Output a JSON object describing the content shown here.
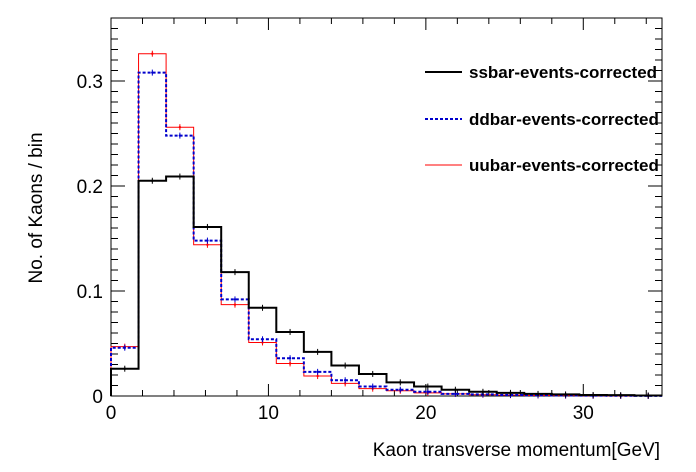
{
  "chart_data": {
    "type": "histogram",
    "xlabel": "Kaon transverse momentum[GeV]",
    "ylabel": "No. of Kaons / bin",
    "xlim": [
      0,
      35
    ],
    "ylim": [
      0,
      0.36
    ],
    "x_ticks": [
      0,
      10,
      20,
      30
    ],
    "y_ticks": [
      0,
      0.1,
      0.2,
      0.3
    ],
    "x_tick_labels": [
      "0",
      "10",
      "20",
      "30"
    ],
    "y_tick_labels": [
      "0",
      "0.1",
      "0.2",
      "0.3"
    ],
    "grid": false,
    "legend_position": "top-right",
    "bin_edges": [
      0,
      1.75,
      3.5,
      5.25,
      7,
      8.75,
      10.5,
      12.25,
      14,
      15.75,
      17.5,
      19.25,
      21,
      22.75,
      24.5,
      26.25,
      28,
      29.75,
      31.5,
      33.25,
      35
    ],
    "series": [
      {
        "name": "ssbar-events-corrected",
        "color": "#000000",
        "style": "solid",
        "values": [
          0.026,
          0.205,
          0.209,
          0.161,
          0.118,
          0.084,
          0.061,
          0.042,
          0.029,
          0.021,
          0.013,
          0.009,
          0.006,
          0.004,
          0.003,
          0.002,
          0.0015,
          0.001,
          0.0008,
          0.0005
        ]
      },
      {
        "name": "ddbar-events-corrected",
        "color": "#0000cc",
        "style": "dotted",
        "values": [
          0.046,
          0.308,
          0.248,
          0.148,
          0.092,
          0.054,
          0.036,
          0.023,
          0.015,
          0.009,
          0.006,
          0.004,
          0.002,
          0.0015,
          0.001,
          0.0007,
          0.0005,
          0.0003,
          0.0002,
          0.0001
        ]
      },
      {
        "name": "uubar-events-corrected",
        "color": "#ff0000",
        "style": "solid",
        "values": [
          0.047,
          0.326,
          0.256,
          0.144,
          0.087,
          0.051,
          0.031,
          0.019,
          0.012,
          0.007,
          0.005,
          0.003,
          0.002,
          0.0012,
          0.0008,
          0.0005,
          0.0003,
          0.0002,
          0.0001,
          0.0001
        ]
      }
    ]
  }
}
